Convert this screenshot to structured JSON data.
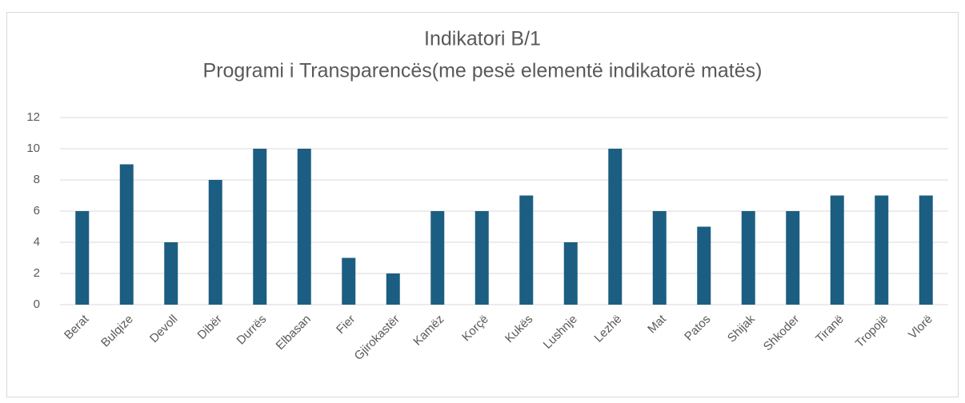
{
  "chart_data": {
    "type": "bar",
    "title": "Indikatori B/1",
    "subtitle": "Programi i Transparencës(me pesë elementë indikatorë matës)",
    "categories": [
      "Berat",
      "Bulqize",
      "Devoll",
      "Dibër",
      "Durrës",
      "Elbasan",
      "Fier",
      "Gjirokastër",
      "Kamëz",
      "Korçë",
      "Kukës",
      "Lushnje",
      "Lezhë",
      "Mat",
      "Patos",
      "Shijak",
      "Shkoder",
      "Tiranë",
      "Tropojë",
      "Vlorë"
    ],
    "values": [
      6,
      9,
      4,
      8,
      10,
      10,
      3,
      2,
      6,
      6,
      7,
      4,
      10,
      6,
      5,
      6,
      6,
      7,
      7,
      7
    ],
    "color": "#1b5e82",
    "ylim": [
      0,
      12
    ],
    "yticks": [
      0,
      2,
      4,
      6,
      8,
      10,
      12
    ],
    "grid": true
  }
}
